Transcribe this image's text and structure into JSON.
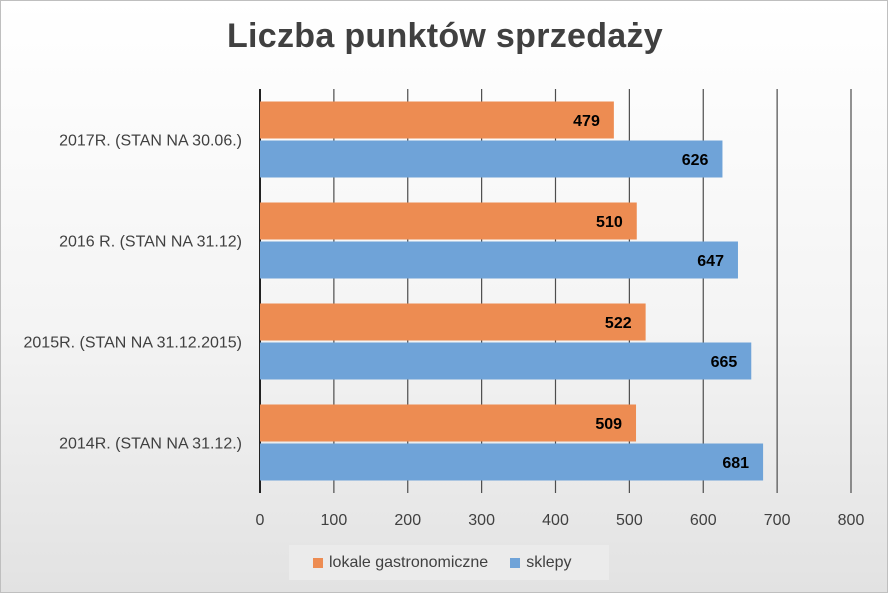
{
  "chart_data": {
    "type": "bar",
    "orientation": "horizontal",
    "title": "Liczba punktów sprzedaży",
    "categories": [
      "2014R. (STAN NA 31.12.)",
      "2015R. (STAN NA 31.12.2015)",
      "2016 R. (STAN NA 31.12)",
      "2017R. (STAN NA 30.06.)"
    ],
    "series": [
      {
        "name": "lokale gastronomiczne",
        "color": "#ed8c52",
        "values": [
          509,
          522,
          510,
          479
        ]
      },
      {
        "name": "sklepy",
        "color": "#6fa3d8",
        "values": [
          681,
          665,
          647,
          626
        ]
      }
    ],
    "xlim": [
      0,
      800
    ],
    "xticks": [
      0,
      100,
      200,
      300,
      400,
      500,
      600,
      700,
      800
    ],
    "xlabel": "",
    "ylabel": "",
    "grid": "vertical",
    "data_labels": true,
    "legend_position": "bottom"
  }
}
